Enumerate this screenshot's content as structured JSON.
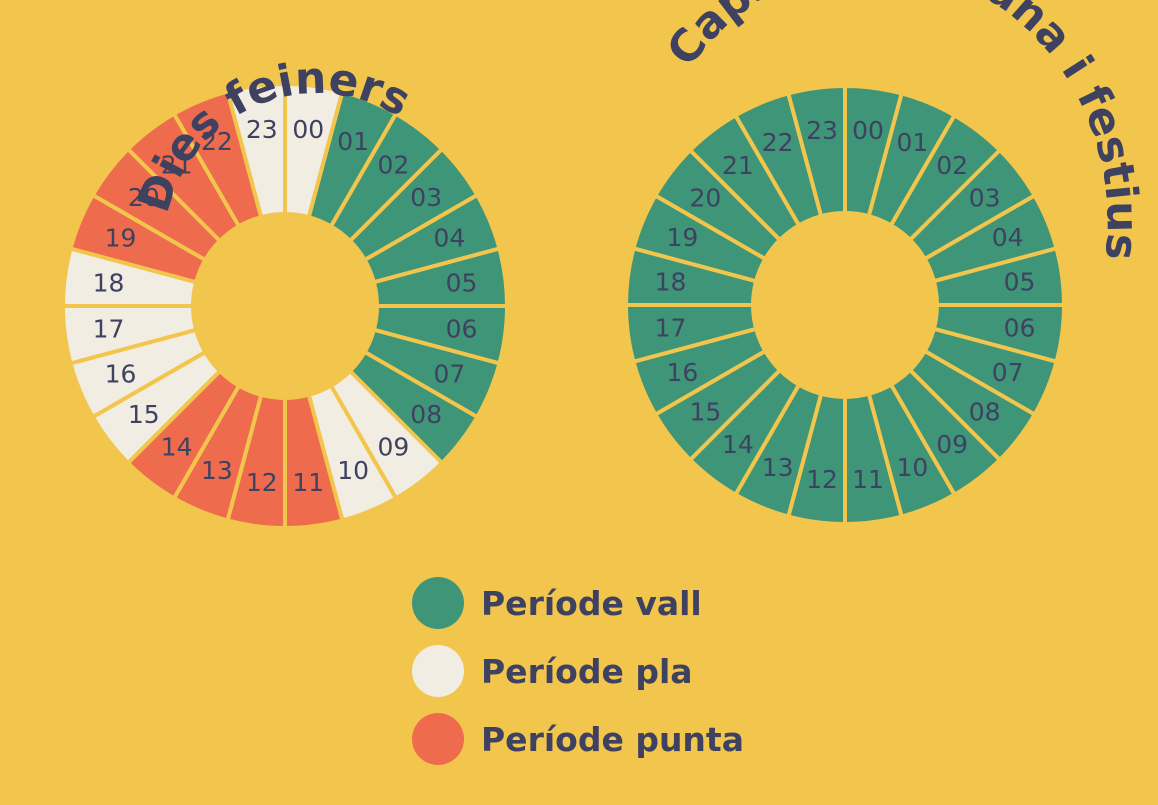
{
  "periods": {
    "vall": {
      "label": "Període vall",
      "color": "#3F9578"
    },
    "pla": {
      "label": "Període pla",
      "color": "#F2EDE3"
    },
    "punta": {
      "label": "Període punta",
      "color": "#EE6C4D"
    }
  },
  "legend_order": [
    "vall",
    "pla",
    "punta"
  ],
  "hour_labels": [
    "00",
    "01",
    "02",
    "03",
    "04",
    "05",
    "06",
    "07",
    "08",
    "09",
    "10",
    "11",
    "12",
    "13",
    "14",
    "15",
    "16",
    "17",
    "18",
    "19",
    "20",
    "21",
    "22",
    "23"
  ],
  "rings": [
    {
      "title": "Dies feiners",
      "periods": [
        "pla",
        "vall",
        "vall",
        "vall",
        "vall",
        "vall",
        "vall",
        "vall",
        "vall",
        "pla",
        "pla",
        "punta",
        "punta",
        "punta",
        "punta",
        "pla",
        "pla",
        "pla",
        "pla",
        "punta",
        "punta",
        "punta",
        "punta",
        "pla"
      ]
    },
    {
      "title": "Caps de setmana i festius",
      "periods": [
        "vall",
        "vall",
        "vall",
        "vall",
        "vall",
        "vall",
        "vall",
        "vall",
        "vall",
        "vall",
        "vall",
        "vall",
        "vall",
        "vall",
        "vall",
        "vall",
        "vall",
        "vall",
        "vall",
        "vall",
        "vall",
        "vall",
        "vall",
        "vall"
      ]
    }
  ],
  "colors": {
    "background": "#F2C64D",
    "divider": "#F2C64D",
    "text": "#3E4260"
  }
}
